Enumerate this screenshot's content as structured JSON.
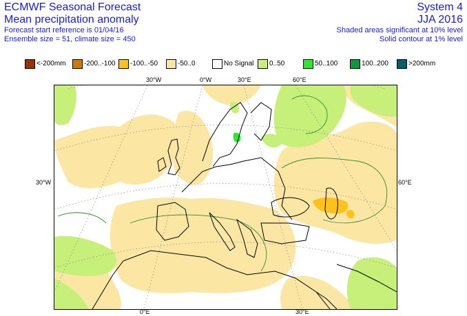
{
  "header": {
    "title": "ECMWF Seasonal Forecast",
    "subtitle": "Mean precipitation anomaly",
    "start_ref": "Forecast start reference is 01/04/16",
    "ensemble": "Ensemble size = 51, climate size = 450",
    "system": "System 4",
    "season": "JJA 2016",
    "sig_shaded": "Shaded areas significant at 10% level",
    "sig_contour": "Solid contour at 1% level"
  },
  "legend": [
    {
      "label": "<-200mm",
      "color": "#993300"
    },
    {
      "label": "-200..-100",
      "color": "#cc7a00"
    },
    {
      "label": "-100..-50",
      "color": "#ffc21a"
    },
    {
      "label": "-50..0",
      "color": "#fbe6a4"
    },
    {
      "label": "No Signal",
      "color": "#ffffff"
    },
    {
      "label": "0..50",
      "color": "#c6f07a"
    },
    {
      "label": "50..100",
      "color": "#2ee82e"
    },
    {
      "label": "100..200",
      "color": "#0a9a3a"
    },
    {
      "label": ">200mm",
      "color": "#00606a"
    }
  ],
  "map": {
    "lon_labels_top": [
      "30°W",
      "0°W",
      "30°E",
      "60°E"
    ],
    "lon_labels_bottom": [
      "0°E",
      "30°E"
    ],
    "lat_labels_left": [
      "30°W"
    ],
    "lat_labels_right": [
      "60°E"
    ],
    "colors": {
      "dry_light": "#fbe6a4",
      "dry_moderate": "#ffc21a",
      "wet_light": "#c6f07a",
      "wet_moderate": "#2ee82e",
      "contour": "#2e8b2e",
      "coast": "#000000",
      "grid": "#888888"
    }
  }
}
